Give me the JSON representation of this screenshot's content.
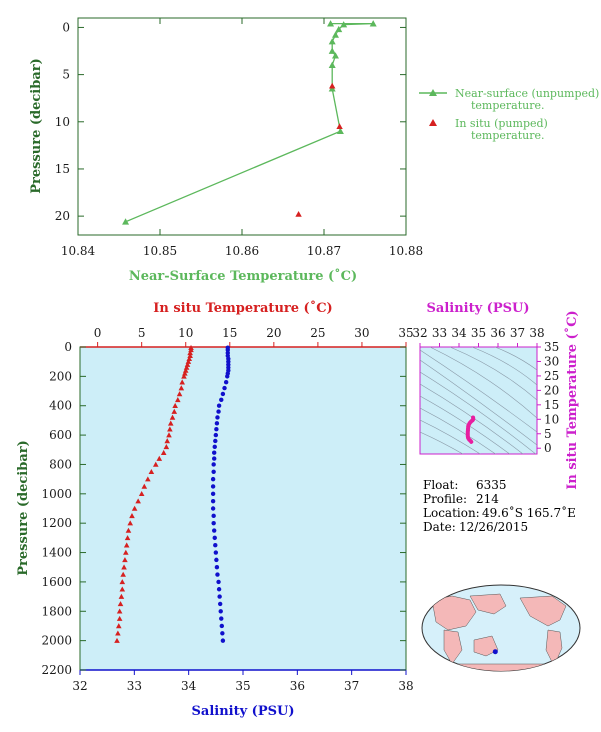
{
  "colors": {
    "near_surface": "#5cb85c",
    "in_situ_red": "#d62020",
    "salinity_blue": "#1010cc",
    "salinity_axis": "#cc20cc",
    "ts_trace": "#e81ea0",
    "plot_bg": "#cdeef8",
    "axis_text": "#2a6a2a",
    "land": "#f4b8b8",
    "ocean": "#d6f0fa"
  },
  "chart_data": [
    {
      "type": "line",
      "xlabel": "Near-Surface Temperature (˚C)",
      "ylabel": "Pressure (decibar)",
      "xlim": [
        10.84,
        10.88
      ],
      "ylim": [
        22,
        -1
      ],
      "xticks": [
        "10.84",
        "10.85",
        "10.86",
        "10.87",
        "10.88"
      ],
      "yticks": [
        "0",
        "5",
        "10",
        "15",
        "20"
      ],
      "legend": [
        {
          "label_line1": "Near-surface (unpumped)",
          "label_line2": "temperature.",
          "marker": "triangle-line"
        },
        {
          "label_line1": "In situ (pumped)",
          "label_line2": "temperature.",
          "marker": "triangle"
        }
      ],
      "series": [
        {
          "name": "Near-surface (unpumped) temperature.",
          "x": [
            10.8708,
            10.876,
            10.8724,
            10.8718,
            10.8714,
            10.871,
            10.871,
            10.8714,
            10.871,
            10.871,
            10.872,
            10.8458
          ],
          "y": [
            -0.4,
            -0.4,
            -0.3,
            0.2,
            0.8,
            1.5,
            2.5,
            3.0,
            4.0,
            6.5,
            11.0,
            20.6
          ]
        },
        {
          "name": "In situ (pumped) temperature.",
          "x": [
            10.871,
            10.8719,
            10.8669
          ],
          "y": [
            6.2,
            10.5,
            19.8
          ]
        }
      ]
    },
    {
      "type": "scatter",
      "ylabel": "Pressure (decibar)",
      "top_xlabel": "In situ Temperature (˚C)",
      "bottom_xlabel": "Salinity (PSU)",
      "temp_lim": [
        -2,
        35
      ],
      "sal_lim": [
        32,
        38
      ],
      "ylim": [
        2200,
        0
      ],
      "temp_ticks": [
        "0",
        "5",
        "10",
        "15",
        "20",
        "25",
        "30",
        "35"
      ],
      "sal_ticks": [
        "32",
        "33",
        "34",
        "35",
        "36",
        "37",
        "38"
      ],
      "p_ticks": [
        "0",
        "200",
        "400",
        "600",
        "800",
        "1000",
        "1200",
        "1400",
        "1600",
        "1800",
        "2000",
        "2200"
      ],
      "temperature": {
        "p": [
          5,
          20,
          40,
          60,
          80,
          100,
          120,
          140,
          160,
          180,
          200,
          240,
          280,
          320,
          360,
          400,
          440,
          480,
          520,
          560,
          600,
          640,
          680,
          720,
          760,
          800,
          850,
          900,
          950,
          1000,
          1050,
          1100,
          1150,
          1200,
          1250,
          1300,
          1350,
          1400,
          1450,
          1500,
          1550,
          1600,
          1650,
          1700,
          1750,
          1800,
          1850,
          1900,
          1950,
          2000
        ],
        "t": [
          10.6,
          10.6,
          10.5,
          10.5,
          10.4,
          10.3,
          10.2,
          10.1,
          10.0,
          9.9,
          9.8,
          9.6,
          9.5,
          9.3,
          9.1,
          8.8,
          8.7,
          8.5,
          8.3,
          8.2,
          8.1,
          7.9,
          7.8,
          7.5,
          7.0,
          6.6,
          6.1,
          5.7,
          5.3,
          5.0,
          4.6,
          4.2,
          3.9,
          3.7,
          3.5,
          3.4,
          3.3,
          3.2,
          3.1,
          3.0,
          2.9,
          2.8,
          2.8,
          2.7,
          2.6,
          2.5,
          2.5,
          2.4,
          2.3,
          2.2
        ]
      },
      "salinity": {
        "p": [
          5,
          20,
          40,
          60,
          80,
          100,
          120,
          140,
          160,
          180,
          200,
          240,
          280,
          320,
          360,
          400,
          440,
          480,
          520,
          560,
          600,
          640,
          680,
          720,
          760,
          800,
          850,
          900,
          950,
          1000,
          1050,
          1100,
          1150,
          1200,
          1250,
          1300,
          1350,
          1400,
          1450,
          1500,
          1550,
          1600,
          1650,
          1700,
          1750,
          1800,
          1850,
          1900,
          1950,
          2000
        ],
        "s": [
          34.72,
          34.72,
          34.72,
          34.72,
          34.73,
          34.73,
          34.73,
          34.73,
          34.73,
          34.72,
          34.71,
          34.69,
          34.66,
          34.63,
          34.6,
          34.56,
          34.55,
          34.53,
          34.52,
          34.51,
          34.5,
          34.49,
          34.48,
          34.47,
          34.47,
          34.46,
          34.46,
          34.45,
          34.45,
          34.45,
          34.45,
          34.45,
          34.46,
          34.46,
          34.47,
          34.48,
          34.49,
          34.5,
          34.51,
          34.52,
          34.53,
          34.55,
          34.56,
          34.57,
          34.58,
          34.59,
          34.6,
          34.61,
          34.62,
          34.63
        ]
      }
    },
    {
      "type": "scatter",
      "title": "Salinity (PSU)",
      "ylabel": "In situ Temperature (˚C)",
      "xlim": [
        32,
        38
      ],
      "ylim": [
        -2,
        35
      ],
      "xticks": [
        "32",
        "33",
        "34",
        "35",
        "36",
        "37",
        "38"
      ],
      "yticks": [
        "0",
        "5",
        "10",
        "15",
        "20",
        "25",
        "30",
        "35"
      ]
    }
  ],
  "info": {
    "float_label": "Float:",
    "float": "6335",
    "profile_label": "Profile:",
    "profile": "214",
    "location_label": "Location:",
    "location": "49.6˚S  165.7˚E",
    "date_label": "Date:",
    "date": "12/26/2015"
  },
  "map": {
    "marker_lat": -49.6,
    "marker_lon": 165.7
  }
}
